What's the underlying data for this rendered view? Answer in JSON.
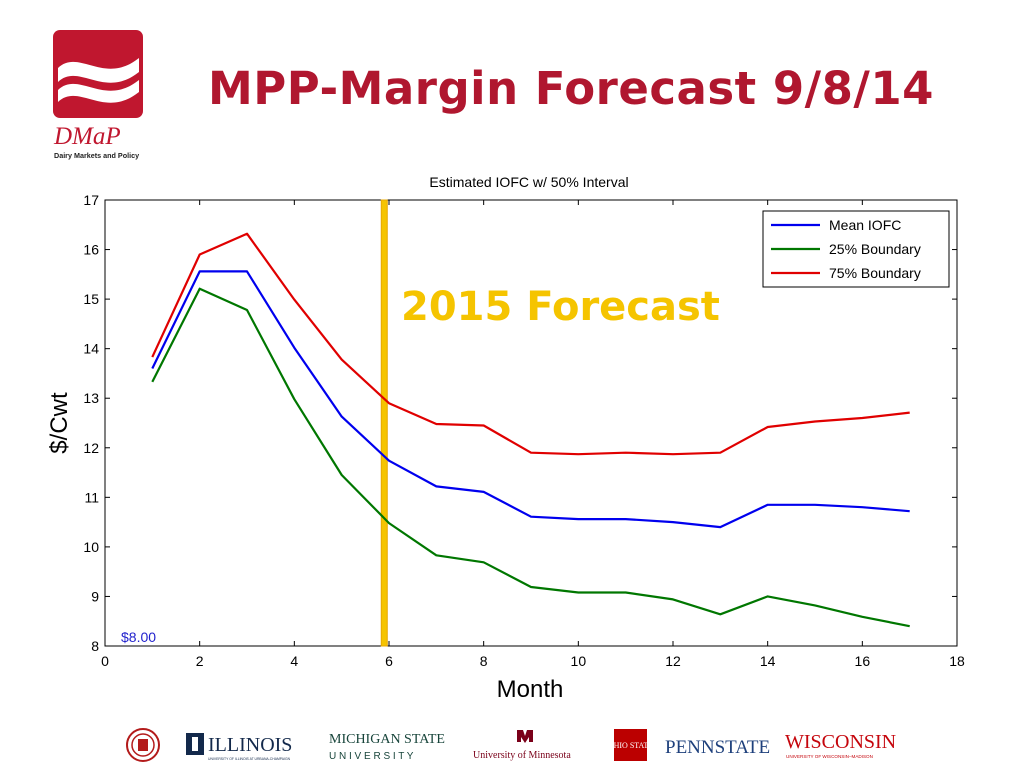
{
  "slide": {
    "title": "MPP-Margin Forecast 9/8/14",
    "logo": {
      "name": "DMaP",
      "subtitle": "Dairy Markets and Policy",
      "color": "#c0172f"
    },
    "annotation": "2015 Forecast",
    "annotation_color": "#f5c400",
    "marker_label": "$8.00"
  },
  "chart_data": {
    "type": "line",
    "title": "Estimated IOFC w/ 50% Interval",
    "xlabel": "Month",
    "ylabel": "$/Cwt",
    "xlim": [
      0,
      18
    ],
    "ylim": [
      8,
      17
    ],
    "xticks": [
      0,
      2,
      4,
      6,
      8,
      10,
      12,
      14,
      16,
      18
    ],
    "yticks": [
      8,
      9,
      10,
      11,
      12,
      13,
      14,
      15,
      16,
      17
    ],
    "grid": false,
    "legend_position": "top-right",
    "vertical_marker_x": 5.9,
    "x": [
      1,
      2,
      3,
      4,
      5,
      6,
      7,
      8,
      9,
      10,
      11,
      12,
      13,
      14,
      15,
      16,
      17
    ],
    "series": [
      {
        "name": "Mean IOFC",
        "color": "#0000ee",
        "values": [
          13.6,
          15.56,
          15.56,
          14.02,
          12.63,
          11.74,
          11.22,
          11.11,
          10.61,
          10.56,
          10.56,
          10.5,
          10.4,
          10.85,
          10.85,
          10.8,
          10.72
        ]
      },
      {
        "name": "25% Boundary",
        "color": "#007700",
        "values": [
          13.33,
          15.21,
          14.78,
          12.98,
          11.45,
          10.48,
          9.83,
          9.69,
          9.19,
          9.08,
          9.08,
          8.94,
          8.64,
          9.0,
          8.82,
          8.59,
          8.4
        ]
      },
      {
        "name": "75% Boundary",
        "color": "#e00000",
        "values": [
          13.83,
          15.9,
          16.32,
          14.99,
          13.78,
          12.9,
          12.48,
          12.45,
          11.9,
          11.87,
          11.9,
          11.87,
          11.9,
          12.42,
          12.53,
          12.6,
          12.71
        ]
      }
    ]
  },
  "footer": {
    "logos": [
      {
        "name": "Cornell seal"
      },
      {
        "name": "ILLINOIS",
        "sub": "UNIVERSITY OF ILLINOIS AT URBANA-CHAMPAIGN"
      },
      {
        "name": "MICHIGAN STATE",
        "sub": "U N I V E R S I T Y"
      },
      {
        "name": "University of Minnesota"
      },
      {
        "name": "OHIO STATE"
      },
      {
        "name": "PENNSTATE"
      },
      {
        "name": "WISCONSIN",
        "sub": "UNIVERSITY OF WISCONSIN–MADISON"
      }
    ]
  }
}
